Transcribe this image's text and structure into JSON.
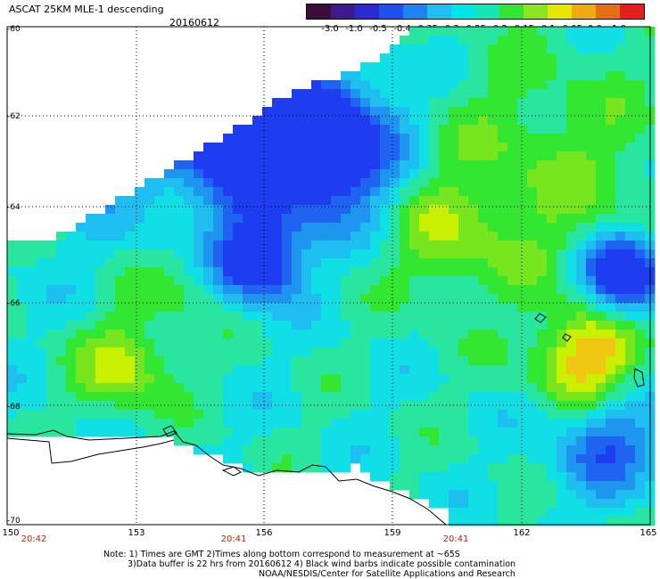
{
  "header": {
    "title": "ASCAT 25KM MLE-1 descending",
    "date": "20160612"
  },
  "colorbar": {
    "labels": [
      "-3.0",
      "-1.0",
      "-0.5",
      "-0.4",
      "-0.35",
      "-0.3",
      "-0.25",
      "-0.2",
      "-0.15",
      "-0.1",
      "-0.05",
      "0.0",
      "1.0"
    ],
    "colors": [
      "#3a0d3a",
      "#3c1a8c",
      "#2a2ad0",
      "#1e50f0",
      "#1e82f0",
      "#1ebef0",
      "#00e6e6",
      "#14e6b4",
      "#32e632",
      "#8ae61e",
      "#e6e600",
      "#f0aa14",
      "#e66e14",
      "#e61e1e"
    ]
  },
  "axes": {
    "lat_labels": [
      "-60",
      "-62",
      "-64",
      "-66",
      "-68",
      "-70"
    ],
    "lon_labels": [
      "150",
      "153",
      "156",
      "159",
      "162",
      "165"
    ]
  },
  "times": [
    "20:42",
    "20:41",
    "20:41"
  ],
  "notes": {
    "line1": "Note: 1) Times are GMT 2)Times along bottom correspond to measurement at ~65S",
    "line2": "3)Data buffer is 22 hrs from 20160612 4) Black wind barbs indicate possible contamination",
    "line3": "NOAA/NESDIS/Center for Satellite Applications and Research"
  }
}
